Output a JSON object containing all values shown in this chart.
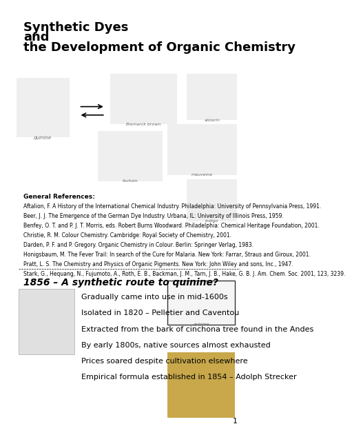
{
  "title_line1": "Synthetic Dyes",
  "title_line2": "and",
  "title_line3": "the Development of Organic Chemistry",
  "general_refs_header": "General References:",
  "references": [
    "Aftalion, F. A History of the International Chemical Industry. Philadelphia: University of Pennsylvania Press, 1991.",
    "Beer, J. J. The Emergence of the German Dye Industry. Urbana, IL: University of Illinois Press, 1959.",
    "Benfey, O. T. and P. J. T. Morris, eds. Robert Burns Woodward. Philadelphia: Chemical Heritage Foundation, 2001.",
    "Christie, R. M. Colour Chemistry. Cambridge: Royal Society of Chemistry, 2001.",
    "Darden, P. F. and P. Gregory. Organic Chemistry in Colour. Berlin: Springer Verlag, 1983.",
    "Honigsbaum, M. The Fever Trail: In search of the Cure for Malaria. New York: Farrar, Straus and Giroux, 2001.",
    "Pratt, L. S. The Chemistry and Physics of Organic Pigments. New York: John Wiley and sons, Inc., 1947.",
    "Stark, G., Hequang, N., Fujumoto, A., Roth, E. B., Backman, J. M., Tarn, J. B., Hake, G. B. J. Am. Chem. Soc. 2001, 123, 3239."
  ],
  "section_title": "1856 – A synthetic route to quinine?",
  "bullet_points": [
    "Gradually came into use in mid-1600s",
    "Isolated in 1820 – Pelletier and Caventou",
    "Extracted from the bark of cinchona tree found in the Andes",
    "By early 1800s, native sources almost exhausted",
    "Prices soared despite cultivation elsewhere",
    "Empirical formula established in 1854 – Adolph Strecker"
  ],
  "page_number": "1",
  "background_color": "#ffffff",
  "text_color": "#000000",
  "title_fontsize": 13,
  "ref_fontsize": 5.5,
  "section_title_fontsize": 10,
  "bullet_fontsize": 8
}
